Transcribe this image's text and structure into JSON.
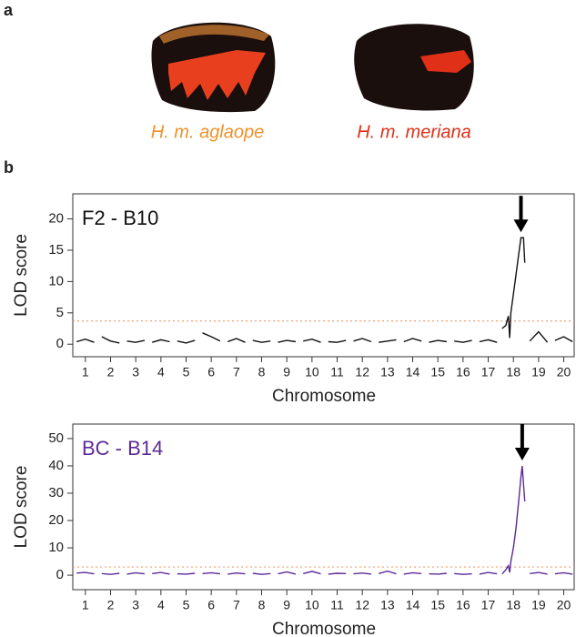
{
  "panels": {
    "a": "a",
    "b": "b"
  },
  "wings": [
    {
      "label": "H. m. aglaope",
      "color": "#f0902a"
    },
    {
      "label": "H. m. meriana",
      "color": "#e03018"
    }
  ],
  "chart_data": [
    {
      "type": "line",
      "ylabel": "LOD score",
      "xlabel": "Chromosome",
      "xlim": [
        0.5,
        20.45
      ],
      "xticks": [
        1,
        2,
        3,
        4,
        5,
        6,
        7,
        8,
        9,
        10,
        11,
        12,
        13,
        14,
        15,
        16,
        17,
        18,
        19,
        20
      ],
      "ylim": [
        -2,
        24
      ],
      "yticks": [
        0,
        5,
        10,
        15,
        20
      ],
      "threshold": 3.7,
      "threshold_color": "#f0a070",
      "series": [
        {
          "name": "F2 - B10",
          "color": "#111111",
          "x": [
            0.65,
            1,
            1.35,
            null,
            1.65,
            2,
            2.35,
            null,
            2.65,
            3,
            3.35,
            null,
            3.65,
            4,
            4.35,
            null,
            4.65,
            5,
            5.35,
            null,
            5.65,
            6,
            6.35,
            null,
            6.65,
            7,
            7.35,
            null,
            7.65,
            8,
            8.35,
            null,
            8.65,
            9,
            9.35,
            null,
            9.65,
            10,
            10.35,
            null,
            10.65,
            11,
            11.35,
            null,
            11.65,
            12,
            12.35,
            null,
            12.65,
            13,
            13.35,
            null,
            13.65,
            14,
            14.35,
            null,
            14.65,
            15,
            15.35,
            null,
            15.65,
            16,
            16.35,
            null,
            16.65,
            17,
            17.35,
            null,
            17.55,
            17.7,
            17.8,
            17.85,
            17.9,
            18,
            18.1,
            18.2,
            18.3,
            18.4,
            18.45,
            null,
            18.65,
            19,
            19.35,
            null,
            19.65,
            20,
            20.35
          ],
          "values": [
            0.4,
            0.8,
            0.3,
            null,
            1.2,
            0.5,
            0.2,
            null,
            0.5,
            0.3,
            0.6,
            null,
            0.3,
            0.7,
            0.4,
            null,
            0.5,
            0.2,
            0.6,
            null,
            1.8,
            1.2,
            0.5,
            null,
            0.4,
            0.9,
            0.3,
            null,
            0.6,
            0.3,
            0.5,
            null,
            0.3,
            0.6,
            0.4,
            null,
            0.5,
            0.8,
            0.3,
            null,
            0.4,
            0.3,
            0.6,
            null,
            0.5,
            0.9,
            0.4,
            null,
            0.3,
            0.5,
            0.7,
            null,
            0.4,
            0.9,
            0.5,
            null,
            0.3,
            0.6,
            0.4,
            null,
            0.5,
            0.3,
            0.6,
            null,
            0.4,
            0.7,
            0.3,
            null,
            2.5,
            3,
            4.5,
            1,
            5,
            8,
            11,
            14,
            17,
            17,
            13,
            null,
            0.5,
            2,
            0.3,
            null,
            0.6,
            1.2,
            0.4
          ]
        }
      ]
    },
    {
      "type": "line",
      "ylabel": "LOD score",
      "xlabel": "Chromosome",
      "xlim": [
        0.5,
        20.45
      ],
      "xticks": [
        1,
        2,
        3,
        4,
        5,
        6,
        7,
        8,
        9,
        10,
        11,
        12,
        13,
        14,
        15,
        16,
        17,
        18,
        19,
        20
      ],
      "ylim": [
        -5.3,
        55.3
      ],
      "yticks": [
        0,
        10,
        20,
        30,
        40,
        50
      ],
      "threshold": 3,
      "threshold_color": "#f0a070",
      "series": [
        {
          "name": "BC - B14",
          "color": "#5b2a96",
          "x": [
            0.65,
            1,
            1.35,
            null,
            1.65,
            2,
            2.35,
            null,
            2.65,
            3,
            3.35,
            null,
            3.65,
            4,
            4.35,
            null,
            4.65,
            5,
            5.35,
            null,
            5.65,
            6,
            6.35,
            null,
            6.65,
            7,
            7.35,
            null,
            7.65,
            8,
            8.35,
            null,
            8.65,
            9,
            9.35,
            null,
            9.65,
            10,
            10.35,
            null,
            10.65,
            11,
            11.35,
            null,
            11.65,
            12,
            12.35,
            null,
            12.65,
            13,
            13.35,
            null,
            13.65,
            14,
            14.35,
            null,
            14.65,
            15,
            15.35,
            null,
            15.65,
            16,
            16.35,
            null,
            16.65,
            17,
            17.35,
            null,
            17.55,
            17.7,
            17.8,
            17.85,
            17.9,
            18,
            18.1,
            18.2,
            18.3,
            18.35,
            18.45,
            null,
            18.65,
            19,
            19.35,
            null,
            19.65,
            20,
            20.35
          ],
          "values": [
            0.8,
            1,
            0.5,
            null,
            0.6,
            0.3,
            0.7,
            null,
            0.4,
            0.9,
            0.5,
            null,
            0.6,
            1,
            0.4,
            null,
            0.5,
            0.4,
            0.7,
            null,
            0.6,
            0.9,
            0.5,
            null,
            0.4,
            0.8,
            0.5,
            null,
            0.7,
            0.3,
            0.6,
            null,
            0.5,
            1.2,
            0.4,
            null,
            0.6,
            1.4,
            0.5,
            null,
            0.4,
            0.7,
            0.6,
            null,
            0.5,
            0.8,
            0.4,
            null,
            0.6,
            1.5,
            0.5,
            null,
            0.4,
            0.9,
            0.6,
            null,
            0.5,
            0.4,
            0.7,
            null,
            0.6,
            0.3,
            0.5,
            null,
            0.4,
            1,
            0.5,
            null,
            0.5,
            2,
            3.5,
            1,
            5,
            10,
            17,
            26,
            36,
            40,
            27,
            null,
            0.6,
            1,
            0.4,
            null,
            0.5,
            0.9,
            0.4
          ]
        }
      ]
    }
  ]
}
